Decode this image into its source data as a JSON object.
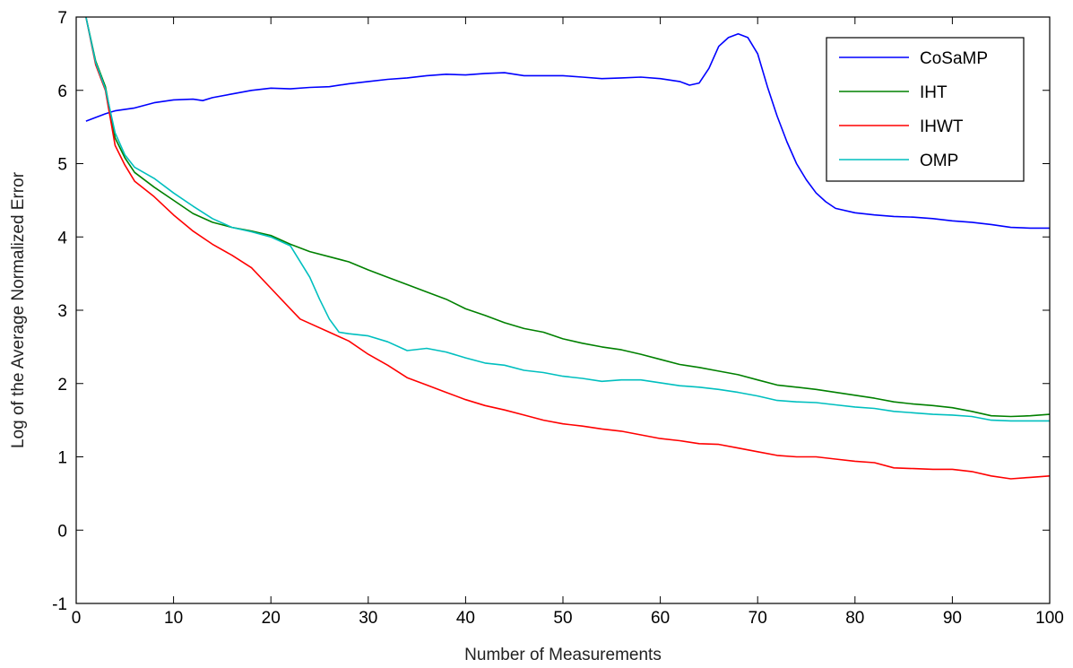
{
  "chart_data": {
    "type": "line",
    "xlabel": "Number of Measurements",
    "ylabel": "Log of the Average Normalized Error",
    "xlim": [
      0,
      100
    ],
    "ylim": [
      -1,
      7
    ],
    "xticks": [
      0,
      10,
      20,
      30,
      40,
      50,
      60,
      70,
      80,
      90,
      100
    ],
    "yticks": [
      -1,
      0,
      1,
      2,
      3,
      4,
      5,
      6,
      7
    ],
    "grid": false,
    "legend_position": "top-right",
    "series": [
      {
        "name": "CoSaMP",
        "color": "#0000ff",
        "points": [
          [
            1,
            5.58
          ],
          [
            2,
            5.63
          ],
          [
            3,
            5.68
          ],
          [
            4,
            5.72
          ],
          [
            6,
            5.76
          ],
          [
            8,
            5.83
          ],
          [
            10,
            5.87
          ],
          [
            12,
            5.88
          ],
          [
            13,
            5.86
          ],
          [
            14,
            5.9
          ],
          [
            16,
            5.95
          ],
          [
            18,
            6.0
          ],
          [
            20,
            6.03
          ],
          [
            22,
            6.02
          ],
          [
            24,
            6.04
          ],
          [
            26,
            6.05
          ],
          [
            28,
            6.09
          ],
          [
            30,
            6.12
          ],
          [
            32,
            6.15
          ],
          [
            34,
            6.17
          ],
          [
            36,
            6.2
          ],
          [
            38,
            6.22
          ],
          [
            40,
            6.21
          ],
          [
            42,
            6.23
          ],
          [
            44,
            6.24
          ],
          [
            46,
            6.2
          ],
          [
            48,
            6.2
          ],
          [
            50,
            6.2
          ],
          [
            52,
            6.18
          ],
          [
            54,
            6.16
          ],
          [
            56,
            6.17
          ],
          [
            58,
            6.18
          ],
          [
            60,
            6.16
          ],
          [
            62,
            6.12
          ],
          [
            63,
            6.07
          ],
          [
            64,
            6.1
          ],
          [
            65,
            6.3
          ],
          [
            66,
            6.6
          ],
          [
            67,
            6.72
          ],
          [
            68,
            6.77
          ],
          [
            69,
            6.72
          ],
          [
            70,
            6.5
          ],
          [
            71,
            6.05
          ],
          [
            72,
            5.65
          ],
          [
            73,
            5.3
          ],
          [
            74,
            5.0
          ],
          [
            75,
            4.78
          ],
          [
            76,
            4.6
          ],
          [
            77,
            4.48
          ],
          [
            78,
            4.39
          ],
          [
            80,
            4.33
          ],
          [
            82,
            4.3
          ],
          [
            84,
            4.28
          ],
          [
            86,
            4.27
          ],
          [
            88,
            4.25
          ],
          [
            90,
            4.22
          ],
          [
            92,
            4.2
          ],
          [
            94,
            4.17
          ],
          [
            96,
            4.13
          ],
          [
            98,
            4.12
          ],
          [
            100,
            4.12
          ]
        ]
      },
      {
        "name": "IHT",
        "color": "#008000",
        "points": [
          [
            1,
            7.0
          ],
          [
            2,
            6.4
          ],
          [
            3,
            6.05
          ],
          [
            4,
            5.35
          ],
          [
            5,
            5.08
          ],
          [
            6,
            4.88
          ],
          [
            8,
            4.68
          ],
          [
            10,
            4.5
          ],
          [
            12,
            4.32
          ],
          [
            14,
            4.2
          ],
          [
            16,
            4.13
          ],
          [
            18,
            4.08
          ],
          [
            20,
            4.02
          ],
          [
            22,
            3.9
          ],
          [
            24,
            3.8
          ],
          [
            26,
            3.73
          ],
          [
            28,
            3.66
          ],
          [
            30,
            3.55
          ],
          [
            32,
            3.45
          ],
          [
            34,
            3.35
          ],
          [
            36,
            3.25
          ],
          [
            38,
            3.15
          ],
          [
            40,
            3.02
          ],
          [
            42,
            2.93
          ],
          [
            44,
            2.83
          ],
          [
            46,
            2.75
          ],
          [
            48,
            2.7
          ],
          [
            50,
            2.61
          ],
          [
            52,
            2.55
          ],
          [
            54,
            2.5
          ],
          [
            56,
            2.46
          ],
          [
            58,
            2.4
          ],
          [
            60,
            2.33
          ],
          [
            62,
            2.26
          ],
          [
            64,
            2.22
          ],
          [
            66,
            2.17
          ],
          [
            68,
            2.12
          ],
          [
            70,
            2.05
          ],
          [
            72,
            1.98
          ],
          [
            74,
            1.95
          ],
          [
            76,
            1.92
          ],
          [
            78,
            1.88
          ],
          [
            80,
            1.84
          ],
          [
            82,
            1.8
          ],
          [
            84,
            1.75
          ],
          [
            86,
            1.72
          ],
          [
            88,
            1.7
          ],
          [
            90,
            1.67
          ],
          [
            92,
            1.62
          ],
          [
            94,
            1.56
          ],
          [
            96,
            1.55
          ],
          [
            98,
            1.56
          ],
          [
            100,
            1.58
          ]
        ]
      },
      {
        "name": "IHWT",
        "color": "#ff0000",
        "points": [
          [
            1,
            7.0
          ],
          [
            2,
            6.35
          ],
          [
            3,
            6.0
          ],
          [
            4,
            5.25
          ],
          [
            5,
            4.98
          ],
          [
            6,
            4.76
          ],
          [
            8,
            4.55
          ],
          [
            10,
            4.3
          ],
          [
            12,
            4.08
          ],
          [
            14,
            3.9
          ],
          [
            16,
            3.75
          ],
          [
            18,
            3.58
          ],
          [
            20,
            3.3
          ],
          [
            22,
            3.02
          ],
          [
            23,
            2.88
          ],
          [
            24,
            2.82
          ],
          [
            26,
            2.7
          ],
          [
            28,
            2.58
          ],
          [
            30,
            2.4
          ],
          [
            32,
            2.25
          ],
          [
            34,
            2.08
          ],
          [
            36,
            1.98
          ],
          [
            38,
            1.88
          ],
          [
            40,
            1.78
          ],
          [
            42,
            1.7
          ],
          [
            44,
            1.64
          ],
          [
            46,
            1.57
          ],
          [
            48,
            1.5
          ],
          [
            50,
            1.45
          ],
          [
            52,
            1.42
          ],
          [
            54,
            1.38
          ],
          [
            56,
            1.35
          ],
          [
            58,
            1.3
          ],
          [
            60,
            1.25
          ],
          [
            62,
            1.22
          ],
          [
            64,
            1.18
          ],
          [
            66,
            1.17
          ],
          [
            68,
            1.12
          ],
          [
            70,
            1.07
          ],
          [
            72,
            1.02
          ],
          [
            74,
            1.0
          ],
          [
            76,
            1.0
          ],
          [
            78,
            0.97
          ],
          [
            80,
            0.94
          ],
          [
            82,
            0.92
          ],
          [
            84,
            0.85
          ],
          [
            86,
            0.84
          ],
          [
            88,
            0.83
          ],
          [
            90,
            0.83
          ],
          [
            92,
            0.8
          ],
          [
            94,
            0.74
          ],
          [
            96,
            0.7
          ],
          [
            98,
            0.72
          ],
          [
            100,
            0.74
          ]
        ]
      },
      {
        "name": "OMP",
        "color": "#00bfbf",
        "points": [
          [
            1,
            7.0
          ],
          [
            2,
            6.38
          ],
          [
            3,
            6.02
          ],
          [
            4,
            5.42
          ],
          [
            5,
            5.12
          ],
          [
            6,
            4.95
          ],
          [
            8,
            4.8
          ],
          [
            10,
            4.6
          ],
          [
            12,
            4.42
          ],
          [
            14,
            4.25
          ],
          [
            16,
            4.13
          ],
          [
            18,
            4.07
          ],
          [
            20,
            4.0
          ],
          [
            22,
            3.88
          ],
          [
            24,
            3.45
          ],
          [
            25,
            3.15
          ],
          [
            26,
            2.88
          ],
          [
            27,
            2.7
          ],
          [
            28,
            2.68
          ],
          [
            30,
            2.65
          ],
          [
            32,
            2.57
          ],
          [
            34,
            2.45
          ],
          [
            36,
            2.48
          ],
          [
            38,
            2.43
          ],
          [
            40,
            2.35
          ],
          [
            42,
            2.28
          ],
          [
            44,
            2.25
          ],
          [
            46,
            2.18
          ],
          [
            48,
            2.15
          ],
          [
            50,
            2.1
          ],
          [
            52,
            2.07
          ],
          [
            54,
            2.03
          ],
          [
            56,
            2.05
          ],
          [
            58,
            2.05
          ],
          [
            60,
            2.01
          ],
          [
            62,
            1.97
          ],
          [
            64,
            1.95
          ],
          [
            66,
            1.92
          ],
          [
            68,
            1.88
          ],
          [
            70,
            1.83
          ],
          [
            72,
            1.77
          ],
          [
            74,
            1.75
          ],
          [
            76,
            1.74
          ],
          [
            78,
            1.71
          ],
          [
            80,
            1.68
          ],
          [
            82,
            1.66
          ],
          [
            84,
            1.62
          ],
          [
            86,
            1.6
          ],
          [
            88,
            1.58
          ],
          [
            90,
            1.57
          ],
          [
            92,
            1.55
          ],
          [
            94,
            1.5
          ],
          [
            96,
            1.49
          ],
          [
            98,
            1.49
          ],
          [
            100,
            1.49
          ]
        ]
      }
    ]
  }
}
